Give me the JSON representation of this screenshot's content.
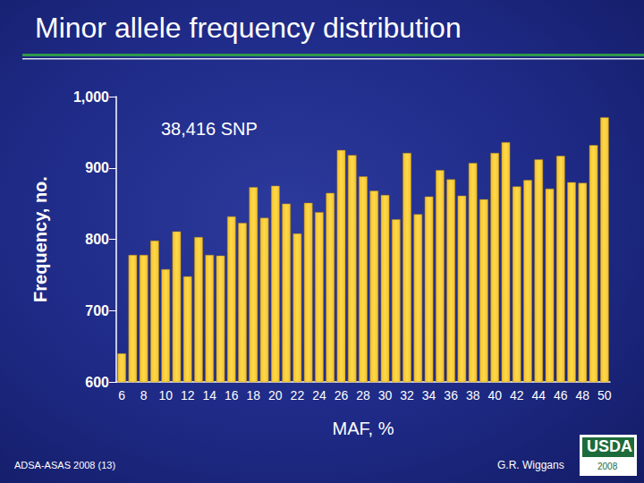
{
  "chart_data": {
    "type": "bar",
    "title": "Minor allele frequency distribution",
    "annotation": "38,416 SNP",
    "x_label": "MAF, %",
    "y_label": "Frequency, no.",
    "categories": [
      6,
      null,
      8,
      null,
      10,
      null,
      12,
      null,
      14,
      null,
      16,
      null,
      18,
      null,
      20,
      null,
      22,
      null,
      24,
      null,
      26,
      null,
      28,
      null,
      30,
      null,
      32,
      null,
      34,
      null,
      36,
      null,
      38,
      null,
      40,
      null,
      42,
      null,
      44,
      null,
      46,
      null,
      48,
      null,
      50
    ],
    "values": [
      640,
      778,
      778,
      798,
      758,
      811,
      748,
      803,
      778,
      777,
      832,
      823,
      873,
      830,
      875,
      850,
      808,
      851,
      838,
      865,
      925,
      918,
      888,
      868,
      862,
      828,
      921,
      835,
      860,
      897,
      884,
      861,
      907,
      856,
      921,
      936,
      874,
      883,
      912,
      871,
      917,
      880,
      879,
      932,
      971
    ],
    "color": "#f2c12e",
    "ylim": [
      600,
      1000
    ],
    "yticks": [
      600,
      700,
      800,
      900,
      {
        "value": 1000,
        "label": "1,000"
      }
    ],
    "grid": false,
    "footer_left": "ADSA-ASAS 2008 (13)",
    "footer_right": "G.R. Wiggans",
    "logo_text": "USDA",
    "logo_year": "2008"
  }
}
